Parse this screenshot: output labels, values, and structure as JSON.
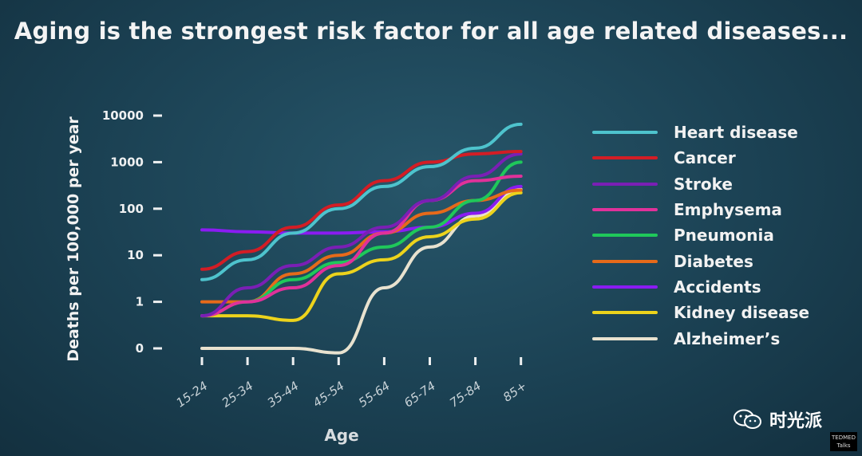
{
  "title": "Aging is the strongest risk factor for all age related diseases...",
  "chart_data": {
    "type": "line",
    "xlabel": "Age",
    "ylabel": "Deaths per 100,000 per year",
    "categories": [
      "15-24",
      "25-34",
      "35-44",
      "45-54",
      "55-64",
      "65-74",
      "75-84",
      "85+"
    ],
    "y_scale": "log",
    "y_ticks": [
      "0",
      "1",
      "10",
      "100",
      "1000",
      "10000"
    ],
    "y_tick_values": [
      0.1,
      1,
      10,
      100,
      1000,
      10000
    ],
    "grid": false,
    "legend_position": "right",
    "series": [
      {
        "name": "Heart disease",
        "color": "#4ec3cd",
        "values": [
          3,
          8,
          30,
          100,
          300,
          800,
          2000,
          6500
        ]
      },
      {
        "name": "Cancer",
        "color": "#d31d25",
        "values": [
          5,
          12,
          40,
          120,
          400,
          1000,
          1500,
          1700
        ]
      },
      {
        "name": "Stroke",
        "color": "#7a1fb5",
        "values": [
          0.5,
          2,
          6,
          15,
          40,
          150,
          500,
          1500
        ]
      },
      {
        "name": "Emphysema",
        "color": "#e0319a",
        "values": [
          0.5,
          1,
          2,
          6,
          30,
          150,
          400,
          500
        ]
      },
      {
        "name": "Pneumonia",
        "color": "#1fc85a",
        "values": [
          0.5,
          1,
          3,
          7,
          15,
          40,
          150,
          1000
        ]
      },
      {
        "name": "Diabetes",
        "color": "#e66a1a",
        "values": [
          1,
          1,
          4,
          10,
          30,
          80,
          150,
          250
        ]
      },
      {
        "name": "Accidents",
        "color": "#8a1cf2",
        "values": [
          35,
          32,
          30,
          30,
          32,
          40,
          80,
          300
        ]
      },
      {
        "name": "Kidney disease",
        "color": "#ecd31c",
        "values": [
          0.5,
          0.5,
          0.4,
          4,
          8,
          25,
          60,
          220
        ]
      },
      {
        "name": "Alzheimer's",
        "color": "#e8e2cf",
        "values": [
          0.1,
          0.1,
          0.1,
          0.08,
          2,
          15,
          70,
          260
        ]
      }
    ]
  },
  "legend": [
    {
      "label": "Heart disease",
      "color": "#4ec3cd"
    },
    {
      "label": "Cancer",
      "color": "#d31d25"
    },
    {
      "label": "Stroke",
      "color": "#7a1fb5"
    },
    {
      "label": "Emphysema",
      "color": "#e0319a"
    },
    {
      "label": "Pneumonia",
      "color": "#1fc85a"
    },
    {
      "label": "Diabetes",
      "color": "#e66a1a"
    },
    {
      "label": "Accidents",
      "color": "#8a1cf2"
    },
    {
      "label": "Kidney disease",
      "color": "#ecd31c"
    },
    {
      "label": "Alzheimer’s",
      "color": "#e8e2cf"
    }
  ],
  "brand": {
    "text": "时光派",
    "icon": "wechat-icon"
  },
  "ted_badge": {
    "top": "TEDMED",
    "bottom": "Talks"
  }
}
